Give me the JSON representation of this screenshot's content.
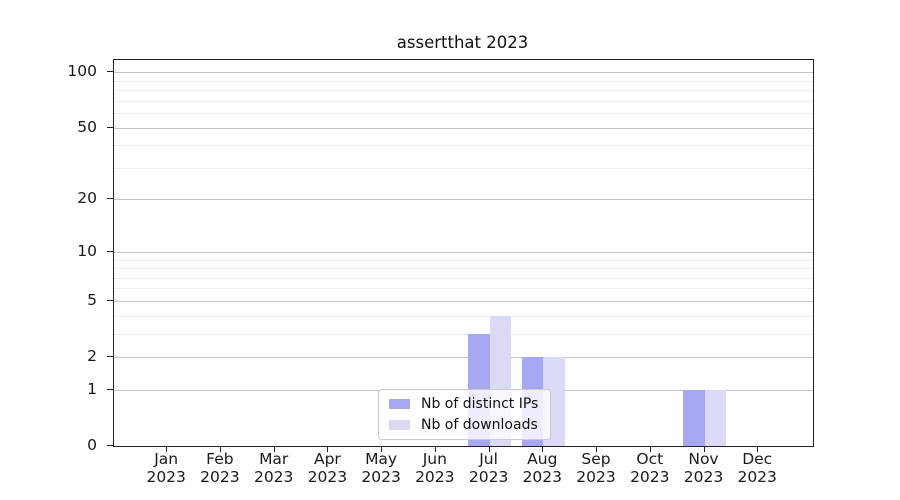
{
  "chart_data": {
    "type": "bar",
    "title": "assertthat 2023",
    "categories": [
      "Jan 2023",
      "Feb 2023",
      "Mar 2023",
      "Apr 2023",
      "May 2023",
      "Jun 2023",
      "Jul 2023",
      "Aug 2023",
      "Sep 2023",
      "Oct 2023",
      "Nov 2023",
      "Dec 2023"
    ],
    "series": [
      {
        "name": "Nb of distinct IPs",
        "color": "#a7a7f2",
        "values": [
          0,
          0,
          0,
          0,
          0,
          0,
          3,
          2,
          0,
          0,
          1,
          0
        ]
      },
      {
        "name": "Nb of downloads",
        "color": "#dadaf7",
        "values": [
          0,
          0,
          0,
          0,
          0,
          0,
          4,
          2,
          0,
          0,
          1,
          0
        ]
      }
    ],
    "y_axis": {
      "scale": "log10(1+v)",
      "ticks": [
        0,
        1,
        2,
        5,
        10,
        20,
        50,
        100
      ],
      "minor_ticks": [
        3,
        4,
        6,
        7,
        8,
        9,
        30,
        40,
        60,
        70,
        80,
        90
      ],
      "ylim": [
        0,
        116.4
      ]
    },
    "xlabel": "",
    "ylabel": "",
    "grid": "horizontal",
    "legend": {
      "position": "lower center",
      "entries": [
        "Nb of distinct IPs",
        "Nb of downloads"
      ]
    }
  },
  "colors": {
    "major_grid": "#c6c6c6",
    "minor_grid": "#ededed",
    "spine": "#222222",
    "bar_ips": "#a7a7f2",
    "bar_downloads": "#dadaf7"
  }
}
